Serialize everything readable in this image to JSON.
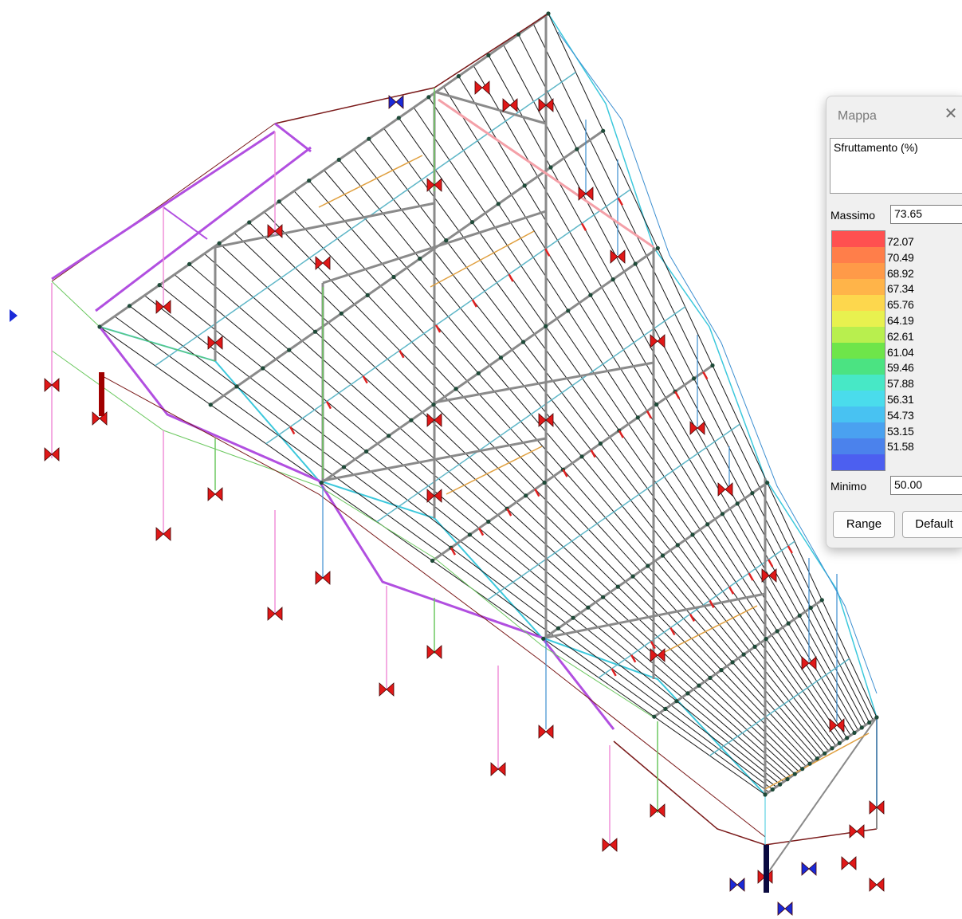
{
  "panel": {
    "title": "Mappa",
    "close_icon": "close-icon",
    "quantity": "Sfruttamento (%)",
    "max_label": "Massimo",
    "max_value": "73.65",
    "min_label": "Minimo",
    "min_value": "50.00",
    "range_button": "Range",
    "default_button": "Default",
    "legend_colors": [
      "#ff5050",
      "#ff7e4a",
      "#ff9a48",
      "#ffb449",
      "#fdd74d",
      "#e8f14f",
      "#b8ef4e",
      "#6ee54a",
      "#4be382",
      "#47e8c6",
      "#4adcec",
      "#48c2f2",
      "#4aa1f0",
      "#4b82ec",
      "#4c5ff0"
    ],
    "legend_ticks": [
      "72.07",
      "70.49",
      "68.92",
      "67.34",
      "65.76",
      "64.19",
      "62.61",
      "61.04",
      "59.46",
      "57.88",
      "56.31",
      "54.73",
      "53.15",
      "51.58"
    ]
  },
  "colors": {
    "grid_black": "#1a1a1a",
    "grid_gray": "#8a8a8a",
    "member_cyan": "#3cc8dc",
    "member_blue": "#3c8ed0",
    "member_magenta": "#b14fe0",
    "member_pink": "#f090d8",
    "member_green": "#6cc860",
    "member_orange": "#e0a040",
    "member_darkred": "#7a1a1a",
    "member_red": "#e02020",
    "support_red": "#e01818",
    "support_blue": "#1a2ad8",
    "node_dark": "#1e4a38"
  }
}
